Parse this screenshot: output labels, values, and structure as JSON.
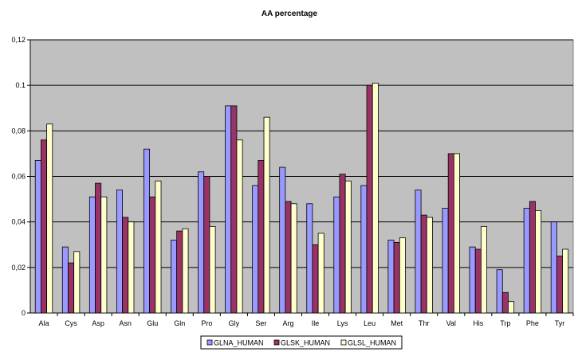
{
  "chart_data": {
    "type": "bar",
    "title": "AA percentage",
    "xlabel": "",
    "ylabel": "",
    "ylim": [
      0,
      0.12
    ],
    "yticks": [
      "0",
      "0,02",
      "0,04",
      "0,06",
      "0,08",
      "0.1",
      "0,12"
    ],
    "grid": true,
    "legend_position": "bottom",
    "categories": [
      "Ala",
      "Cys",
      "Asp",
      "Asn",
      "Glu",
      "Gln",
      "Pro",
      "Gly",
      "Ser",
      "Arg",
      "Ile",
      "Lys",
      "Leu",
      "Met",
      "Thr",
      "Val",
      "His",
      "Trp",
      "Phe",
      "Tyr"
    ],
    "series": [
      {
        "name": "GLNA_HUMAN",
        "color": "#9999ff",
        "values": [
          0.067,
          0.029,
          0.051,
          0.054,
          0.072,
          0.032,
          0.062,
          0.091,
          0.056,
          0.064,
          0.048,
          0.051,
          0.056,
          0.032,
          0.054,
          0.046,
          0.029,
          0.019,
          0.046,
          0.04
        ]
      },
      {
        "name": "GLSK_HUMAN",
        "color": "#993366",
        "values": [
          0.076,
          0.022,
          0.057,
          0.042,
          0.051,
          0.036,
          0.06,
          0.091,
          0.067,
          0.049,
          0.03,
          0.061,
          0.1,
          0.031,
          0.043,
          0.07,
          0.028,
          0.009,
          0.049,
          0.025
        ]
      },
      {
        "name": "GLSL_HUMAN",
        "color": "#ffffcc",
        "values": [
          0.083,
          0.027,
          0.051,
          0.04,
          0.058,
          0.037,
          0.038,
          0.076,
          0.086,
          0.048,
          0.035,
          0.058,
          0.101,
          0.033,
          0.042,
          0.07,
          0.038,
          0.005,
          0.045,
          0.028
        ]
      }
    ],
    "plot_background": "#c0c0c0",
    "gridline_color": "#000000"
  }
}
